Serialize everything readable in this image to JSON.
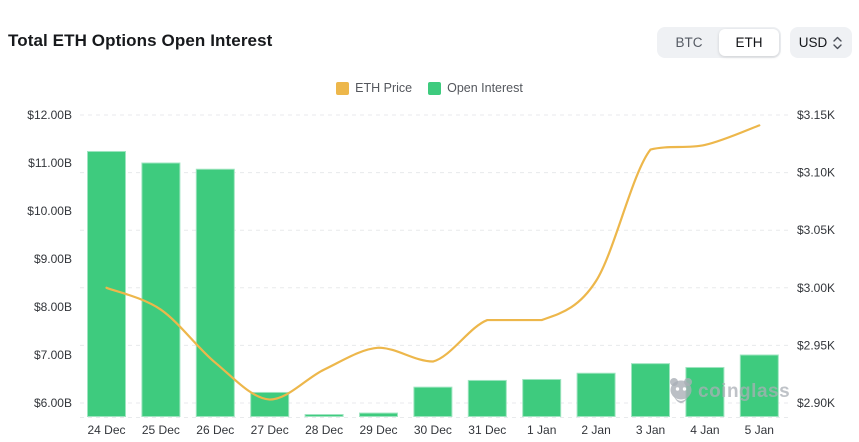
{
  "header": {
    "title": "Total ETH Options Open Interest"
  },
  "controls": {
    "coin_toggle": {
      "options": [
        "BTC",
        "ETH"
      ],
      "selected": "ETH"
    },
    "currency": {
      "value": "USD"
    }
  },
  "legend": [
    {
      "label": "ETH Price",
      "color": "#edb74b"
    },
    {
      "label": "Open Interest",
      "color": "#3ecb7e"
    }
  ],
  "watermark": {
    "text": "coinglass"
  },
  "colors": {
    "bar": "#3ecb7e",
    "bar_edge": "#9fe4c0",
    "line": "#edb74b",
    "grid": "#e8eaec",
    "axis_text": "#33363b",
    "title_text": "#17191c"
  },
  "chart_data": {
    "type": "combo",
    "title": "Total ETH Options Open Interest",
    "categories": [
      "24 Dec",
      "25 Dec",
      "26 Dec",
      "27 Dec",
      "28 Dec",
      "29 Dec",
      "30 Dec",
      "31 Dec",
      "1 Jan",
      "2 Jan",
      "3 Jan",
      "4 Jan",
      "5 Jan"
    ],
    "series": [
      {
        "name": "Open Interest",
        "type": "bar",
        "axis": "left",
        "unit": "USD billions",
        "color": "#3ecb7e",
        "values": [
          11.24,
          11.0,
          10.87,
          6.22,
          5.76,
          5.79,
          6.33,
          6.47,
          6.49,
          6.62,
          6.82,
          6.74,
          7.0
        ]
      },
      {
        "name": "ETH Price",
        "type": "line",
        "axis": "right",
        "unit": "USD thousands",
        "color": "#edb74b",
        "smooth": true,
        "values": [
          3.0,
          2.981,
          2.935,
          2.903,
          2.929,
          2.948,
          2.936,
          2.972,
          2.972,
          3.006,
          3.12,
          3.124,
          3.141
        ]
      }
    ],
    "left_axis": {
      "tick_labels": [
        "$12.00B",
        "$11.00B",
        "$10.00B",
        "$9.00B",
        "$8.00B",
        "$7.00B",
        "$6.00B"
      ],
      "tick_values": [
        12,
        11,
        10,
        9,
        8,
        7,
        6
      ],
      "range_at_plot_edges": [
        5.71,
        12.0
      ]
    },
    "right_axis": {
      "tick_labels": [
        "$3.15K",
        "$3.10K",
        "$3.05K",
        "$3.00K",
        "$2.95K",
        "$2.90K"
      ],
      "tick_values": [
        3.15,
        3.1,
        3.05,
        3.0,
        2.95,
        2.9
      ]
    },
    "grid": "horizontal dashed",
    "legend_position": "top-center"
  }
}
